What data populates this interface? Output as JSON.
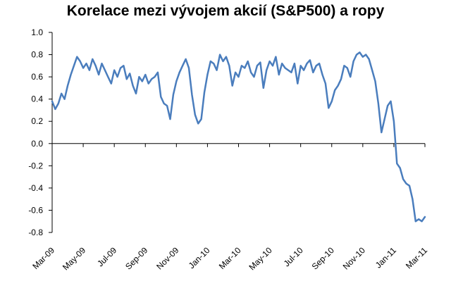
{
  "chart_data": {
    "type": "line",
    "title": "Korelace mezi vývojem akcií (S&P500) a ropy",
    "xlabel": "",
    "ylabel": "",
    "ylim": [
      -0.8,
      1.0
    ],
    "yticks": [
      "1.0",
      "0.8",
      "0.6",
      "0.4",
      "0.2",
      "0.0",
      "-0.2",
      "-0.4",
      "-0.6",
      "-0.8"
    ],
    "yticks_values": [
      1.0,
      0.8,
      0.6,
      0.4,
      0.2,
      0.0,
      -0.2,
      -0.4,
      -0.6,
      -0.8
    ],
    "xticks": [
      "Mar-09",
      "May-09",
      "Jul-09",
      "Sep-09",
      "Nov-09",
      "Jan-10",
      "Mar-10",
      "May-10",
      "Jul-10",
      "Sep-10",
      "Nov-10",
      "Jan-11",
      "Mar-11"
    ],
    "grid": false,
    "line_color": "#4a7dbd",
    "series": [
      {
        "x": [
          0,
          0.1,
          0.2,
          0.3,
          0.4,
          0.5,
          0.6,
          0.7,
          0.8,
          0.9,
          1.0,
          1.1,
          1.2,
          1.3,
          1.4,
          1.5,
          1.6,
          1.7,
          1.8,
          1.9,
          2.0,
          2.1,
          2.2,
          2.3,
          2.4,
          2.5,
          2.6,
          2.7,
          2.8,
          2.9,
          3.0,
          3.1,
          3.2,
          3.3,
          3.4,
          3.5,
          3.6,
          3.7,
          3.8,
          3.9,
          4.0,
          4.1,
          4.2,
          4.3,
          4.4,
          4.5,
          4.6,
          4.7,
          4.8,
          4.9,
          5.0,
          5.1,
          5.2,
          5.3,
          5.4,
          5.5,
          5.6,
          5.7,
          5.8,
          5.9,
          6.0,
          6.1,
          6.2,
          6.3,
          6.4,
          6.5,
          6.6,
          6.7,
          6.8,
          6.9,
          7.0,
          7.1,
          7.2,
          7.3,
          7.4,
          7.5,
          7.6,
          7.7,
          7.8,
          7.9,
          8.0,
          8.1,
          8.2,
          8.3,
          8.4,
          8.5,
          8.6,
          8.7,
          8.8,
          8.9,
          9.0,
          9.1,
          9.2,
          9.3,
          9.4,
          9.5,
          9.6,
          9.7,
          9.8,
          9.9,
          10.0,
          10.1,
          10.2,
          10.3,
          10.4,
          10.5,
          10.6,
          10.7,
          10.8,
          10.9,
          11.0,
          11.1,
          11.2,
          11.3,
          11.4,
          11.5,
          11.6,
          11.7,
          11.8,
          11.9,
          12.0
        ],
        "values": [
          0.38,
          0.31,
          0.36,
          0.45,
          0.4,
          0.52,
          0.62,
          0.7,
          0.78,
          0.74,
          0.68,
          0.72,
          0.66,
          0.76,
          0.7,
          0.62,
          0.72,
          0.66,
          0.6,
          0.54,
          0.66,
          0.6,
          0.68,
          0.7,
          0.58,
          0.63,
          0.52,
          0.45,
          0.6,
          0.56,
          0.62,
          0.54,
          0.58,
          0.6,
          0.64,
          0.42,
          0.36,
          0.34,
          0.22,
          0.44,
          0.56,
          0.64,
          0.7,
          0.76,
          0.68,
          0.44,
          0.26,
          0.18,
          0.22,
          0.46,
          0.62,
          0.74,
          0.72,
          0.66,
          0.8,
          0.74,
          0.78,
          0.7,
          0.52,
          0.64,
          0.6,
          0.7,
          0.68,
          0.74,
          0.64,
          0.6,
          0.7,
          0.73,
          0.5,
          0.66,
          0.74,
          0.7,
          0.78,
          0.62,
          0.72,
          0.68,
          0.66,
          0.64,
          0.72,
          0.54,
          0.7,
          0.66,
          0.72,
          0.75,
          0.64,
          0.7,
          0.72,
          0.62,
          0.54,
          0.32,
          0.38,
          0.48,
          0.52,
          0.58,
          0.7,
          0.68,
          0.6,
          0.74,
          0.8,
          0.82,
          0.78,
          0.8,
          0.76,
          0.66,
          0.56,
          0.36,
          0.1,
          0.22,
          0.34,
          0.38,
          0.2,
          -0.18,
          -0.22,
          -0.32,
          -0.36,
          -0.38,
          -0.5,
          -0.7,
          -0.68,
          -0.7,
          -0.66
        ]
      }
    ]
  }
}
